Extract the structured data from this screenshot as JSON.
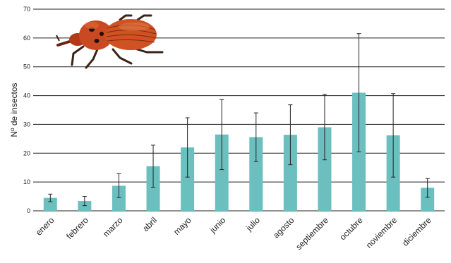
{
  "chart_data": {
    "type": "bar",
    "title": "",
    "xlabel": "",
    "ylabel": "Nº de insectos",
    "ylim": [
      0,
      70
    ],
    "yticks": [
      0,
      10,
      20,
      30,
      40,
      50,
      60,
      70
    ],
    "grid": true,
    "categories": [
      "enero",
      "febrero",
      "marzo",
      "abril",
      "mayo",
      "junio",
      "julio",
      "agosto",
      "septiembre",
      "octubre",
      "noviembre",
      "diciembre"
    ],
    "values": [
      4.5,
      3.4,
      8.7,
      15.5,
      22.0,
      26.5,
      25.6,
      26.4,
      29.0,
      41.0,
      26.2,
      8.0
    ],
    "error_low": [
      3.2,
      1.8,
      4.6,
      8.2,
      11.7,
      14.3,
      17.1,
      16.0,
      17.7,
      20.5,
      11.7,
      4.7
    ],
    "error_high": [
      5.8,
      5.0,
      12.9,
      22.8,
      32.3,
      38.6,
      34.0,
      36.8,
      40.4,
      61.5,
      40.7,
      11.2
    ],
    "bar_color": "#6cbfbf",
    "image": "red-palm-weevil"
  }
}
